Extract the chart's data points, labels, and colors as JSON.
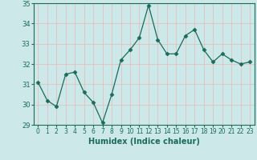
{
  "x": [
    0,
    1,
    2,
    3,
    4,
    5,
    6,
    7,
    8,
    9,
    10,
    11,
    12,
    13,
    14,
    15,
    16,
    17,
    18,
    19,
    20,
    21,
    22,
    23
  ],
  "y": [
    31.1,
    30.2,
    29.9,
    31.5,
    31.6,
    30.6,
    30.1,
    29.1,
    30.5,
    32.2,
    32.7,
    33.3,
    34.9,
    33.2,
    32.5,
    32.5,
    33.4,
    33.7,
    32.7,
    32.1,
    32.5,
    32.2,
    32.0,
    32.1
  ],
  "xlabel": "Humidex (Indice chaleur)",
  "ylim": [
    29,
    35
  ],
  "xlim": [
    -0.5,
    23.5
  ],
  "yticks": [
    29,
    30,
    31,
    32,
    33,
    34,
    35
  ],
  "xticks": [
    0,
    1,
    2,
    3,
    4,
    5,
    6,
    7,
    8,
    9,
    10,
    11,
    12,
    13,
    14,
    15,
    16,
    17,
    18,
    19,
    20,
    21,
    22,
    23
  ],
  "line_color": "#1a6b5a",
  "marker": "D",
  "marker_size": 2.5,
  "bg_color": "#cce8e8",
  "grid_color": "#e8b8b8",
  "axis_bg": "#cce8e8",
  "tick_color": "#1a6b5a",
  "label_color": "#1a6b5a"
}
